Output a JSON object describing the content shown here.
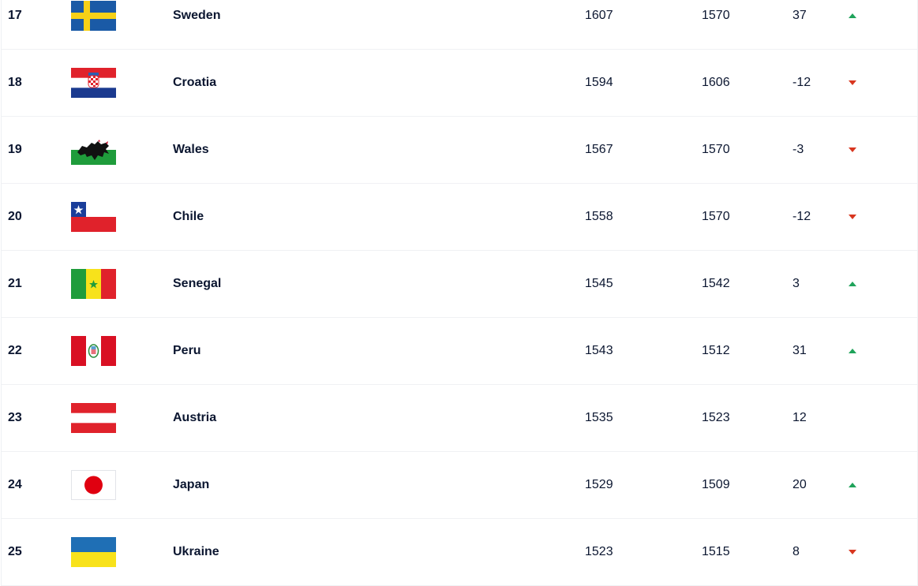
{
  "colors": {
    "up": "#1fa35a",
    "down": "#d8361f"
  },
  "rows": [
    {
      "rank": "17",
      "country": "Sweden",
      "flag": "sweden-flag",
      "points": "1607",
      "previous": "1570",
      "change": "37",
      "trend": "up"
    },
    {
      "rank": "18",
      "country": "Croatia",
      "flag": "croatia-flag",
      "points": "1594",
      "previous": "1606",
      "change": "-12",
      "trend": "down"
    },
    {
      "rank": "19",
      "country": "Wales",
      "flag": "wales-flag",
      "points": "1567",
      "previous": "1570",
      "change": "-3",
      "trend": "down"
    },
    {
      "rank": "20",
      "country": "Chile",
      "flag": "chile-flag",
      "points": "1558",
      "previous": "1570",
      "change": "-12",
      "trend": "down"
    },
    {
      "rank": "21",
      "country": "Senegal",
      "flag": "senegal-flag",
      "points": "1545",
      "previous": "1542",
      "change": "3",
      "trend": "up"
    },
    {
      "rank": "22",
      "country": "Peru",
      "flag": "peru-flag",
      "points": "1543",
      "previous": "1512",
      "change": "31",
      "trend": "up"
    },
    {
      "rank": "23",
      "country": "Austria",
      "flag": "austria-flag",
      "points": "1535",
      "previous": "1523",
      "change": "12",
      "trend": "none"
    },
    {
      "rank": "24",
      "country": "Japan",
      "flag": "japan-flag",
      "points": "1529",
      "previous": "1509",
      "change": "20",
      "trend": "up"
    },
    {
      "rank": "25",
      "country": "Ukraine",
      "flag": "ukraine-flag",
      "points": "1523",
      "previous": "1515",
      "change": "8",
      "trend": "down"
    }
  ]
}
